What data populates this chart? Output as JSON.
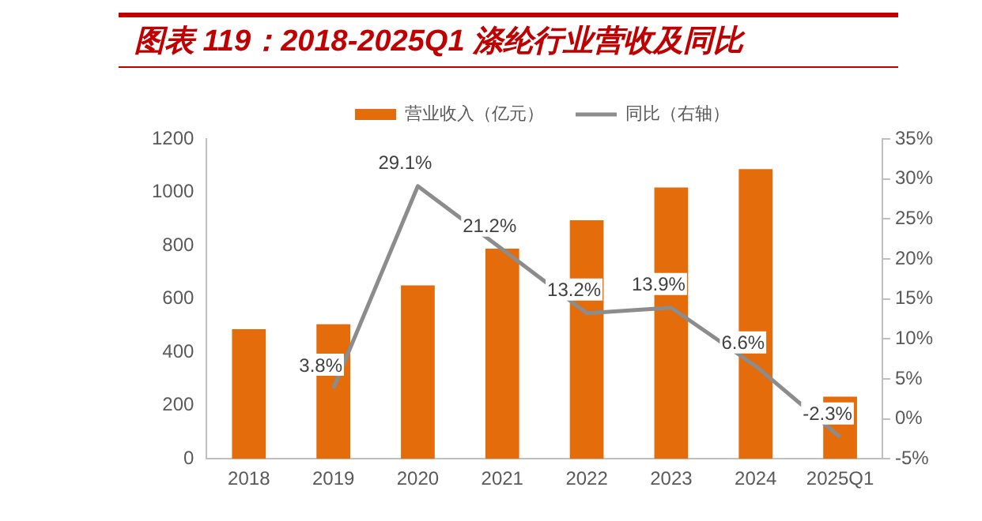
{
  "chart_data": {
    "type": "bar",
    "title": "图表 119：2018-2025Q1 涤纶行业营收及同比",
    "categories": [
      "2018",
      "2019",
      "2020",
      "2021",
      "2022",
      "2023",
      "2024",
      "2025Q1"
    ],
    "series": [
      {
        "name": "营业收入（亿元）",
        "color": "#e46c0a",
        "values": [
          486,
          505,
          651,
          788,
          895,
          1018,
          1087,
          233
        ]
      },
      {
        "name": "同比（右轴）",
        "type": "line",
        "axis": "y2",
        "color": "#8c8c8c",
        "marker": "none",
        "values": [
          null,
          3.8,
          29.1,
          21.2,
          13.2,
          13.9,
          6.6,
          -2.3
        ],
        "value_labels": [
          null,
          "3.8%",
          "29.1%",
          "21.2%",
          "13.2%",
          "13.9%",
          "6.6%",
          "-2.3%"
        ]
      }
    ],
    "ylim": [
      0,
      1200
    ],
    "yticks": [
      0,
      200,
      400,
      600,
      800,
      1000,
      1200
    ],
    "y2lim": [
      -5,
      35
    ],
    "y2ticks": [
      {
        "value": -5,
        "label": "-5%"
      },
      {
        "value": 0,
        "label": "0%"
      },
      {
        "value": 5,
        "label": "5%"
      },
      {
        "value": 10,
        "label": "10%"
      },
      {
        "value": 15,
        "label": "15%"
      },
      {
        "value": 20,
        "label": "20%"
      },
      {
        "value": 25,
        "label": "25%"
      },
      {
        "value": 30,
        "label": "30%"
      },
      {
        "value": 35,
        "label": "35%"
      }
    ],
    "grid": false,
    "legend": "top"
  }
}
